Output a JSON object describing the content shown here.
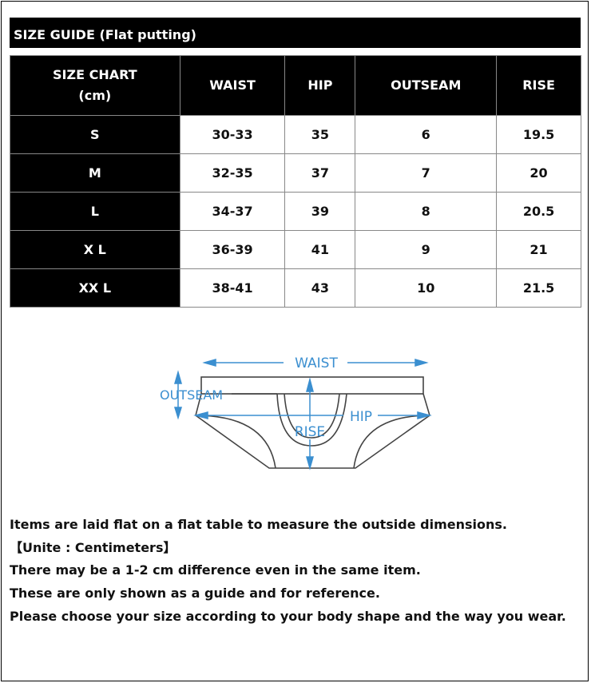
{
  "title": "SIZE GUIDE (Flat putting)",
  "table": {
    "headers": [
      "SIZE CHART\n(cm)",
      "WAIST",
      "HIP",
      "OUTSEAM",
      "RISE"
    ],
    "header_line1": "SIZE CHART",
    "header_line2": "(cm)",
    "rows": [
      [
        "S",
        "30-33",
        "35",
        "6",
        "19.5"
      ],
      [
        "M",
        "32-35",
        "37",
        "7",
        "20"
      ],
      [
        "L",
        "34-37",
        "39",
        "8",
        "20.5"
      ],
      [
        "X L",
        "36-39",
        "41",
        "9",
        "21"
      ],
      [
        "XX L",
        "38-41",
        "43",
        "10",
        "21.5"
      ]
    ]
  },
  "diagram": {
    "labels": {
      "waist": "WAIST",
      "outseam": "OUTSEAM",
      "hip": "HIP",
      "rise": "RISE"
    },
    "accent": "#3b8fd0"
  },
  "notes": [
    "Items are laid flat on a flat table to measure the outside dimensions.",
    "【Unite : Centimeters】",
    "There may be a 1-2 cm difference even in the same item.",
    "These are only shown as a guide and for reference.",
    "Please choose your size according to your body shape and the way you wear."
  ]
}
